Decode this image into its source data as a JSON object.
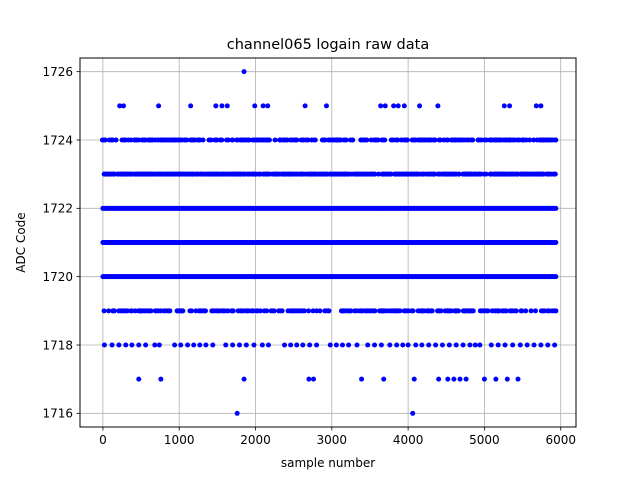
{
  "chart_data": {
    "type": "scatter",
    "title": "channel065 logain raw data",
    "xlabel": "sample number",
    "ylabel": "ADC Code",
    "xlim": [
      -300,
      6200
    ],
    "ylim": [
      1715.6,
      1726.4
    ],
    "xticks": [
      0,
      1000,
      2000,
      3000,
      4000,
      5000,
      6000
    ],
    "yticks": [
      1716,
      1718,
      1720,
      1722,
      1724,
      1726
    ],
    "grid": true,
    "marker_color": "#0000ff",
    "sample_range": [
      0,
      5940
    ],
    "series": [
      {
        "levels": [
          {
            "y": 1716,
            "x": [
              1760,
              4060
            ]
          },
          {
            "y": 1717,
            "x": [
              470,
              760,
              1850,
              2700,
              2760,
              3390,
              3680,
              4080,
              4400,
              4520,
              4600,
              4680,
              4760,
              5000,
              5150,
              5300,
              5440
            ]
          },
          {
            "y": 1718,
            "x": [
              20,
              120,
              210,
              300,
              380,
              470,
              560,
              680,
              740,
              940,
              1020,
              1110,
              1190,
              1270,
              1350,
              1440,
              1610,
              1700,
              1790,
              1880,
              1980,
              2090,
              2170,
              2380,
              2460,
              2540,
              2620,
              2710,
              2800,
              2980,
              3060,
              3140,
              3220,
              3330,
              3470,
              3560,
              3650,
              3760,
              3850,
              3930,
              4000,
              4100,
              4180,
              4270,
              4360,
              4450,
              4540,
              4630,
              4720,
              4810,
              4880,
              4940,
              5090,
              5180,
              5270,
              5370,
              5470,
              5560,
              5650,
              5740,
              5830,
              5920
            ]
          },
          {
            "y": 1719,
            "dense": true,
            "density": 0.5
          },
          {
            "y": 1720,
            "dense": true,
            "density": 1.0
          },
          {
            "y": 1721,
            "dense": true,
            "density": 1.0
          },
          {
            "y": 1722,
            "dense": true,
            "density": 1.0
          },
          {
            "y": 1723,
            "dense": true,
            "density": 0.85
          },
          {
            "y": 1724,
            "dense": true,
            "density": 0.55
          },
          {
            "y": 1725,
            "x": [
              220,
              270,
              730,
              1150,
              1480,
              1560,
              1630,
              1990,
              2100,
              2160,
              2650,
              2930,
              3640,
              3700,
              3810,
              3870,
              3950,
              4150,
              4390,
              5260,
              5330,
              5680,
              5740
            ]
          },
          {
            "y": 1726,
            "x": [
              1850
            ]
          }
        ]
      }
    ]
  }
}
